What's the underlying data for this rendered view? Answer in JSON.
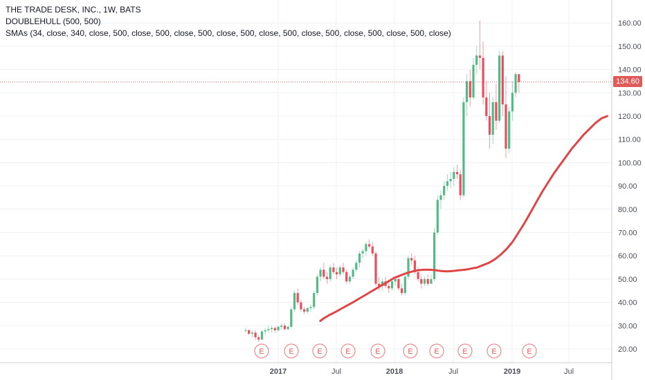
{
  "legend": {
    "title": "THE TRADE DESK, INC., 1W, BATS",
    "indicator1": "DOUBLEHULL (500, 500)",
    "indicator2": "SMAs (34, close, 340, close, 500, close, 500, close, 500, close, 500, close, 500, close, 500, close, 500, close, 500, close)"
  },
  "last_price": "134.60",
  "colors": {
    "up": "#53b987",
    "down": "#eb4d5c",
    "sma": "#e04545",
    "price_line": "#e05a5a",
    "grid": "#eef0f3"
  },
  "chart_data": {
    "type": "candlestick",
    "y_axis": {
      "min": 15,
      "max": 165,
      "ticks": [
        "20.00",
        "30.00",
        "40.00",
        "50.00",
        "60.00",
        "70.00",
        "80.00",
        "90.00",
        "100.00",
        "110.00",
        "120.00",
        "130.00",
        "140.00",
        "150.00",
        "160.00"
      ]
    },
    "x_axis": {
      "labels": [
        "2017",
        "Jul",
        "2018",
        "Jul",
        "2019",
        "Jul"
      ],
      "bold": [
        "2017",
        "2018",
        "2019"
      ]
    },
    "earnings_markers": [
      "E",
      "E",
      "E",
      "E",
      "E",
      "E",
      "E",
      "E",
      "E",
      "E"
    ],
    "candles": [
      [
        28,
        29,
        27,
        28
      ],
      [
        28,
        28.5,
        26,
        26.5
      ],
      [
        26.5,
        28,
        25,
        27
      ],
      [
        27,
        28,
        24,
        25
      ],
      [
        25,
        26,
        23,
        24
      ],
      [
        24,
        28,
        24,
        27.5
      ],
      [
        27.5,
        29,
        26,
        28
      ],
      [
        28,
        30,
        27,
        28.5
      ],
      [
        28.5,
        30,
        27,
        29
      ],
      [
        29,
        29.5,
        27,
        28
      ],
      [
        28,
        30,
        27.5,
        29.5
      ],
      [
        29.5,
        31,
        28.5,
        30
      ],
      [
        30,
        31,
        28,
        28.5
      ],
      [
        28.5,
        30,
        28,
        29.5
      ],
      [
        29.5,
        38,
        29,
        37
      ],
      [
        37,
        45,
        36,
        44
      ],
      [
        44,
        46,
        39,
        40
      ],
      [
        40,
        41,
        36,
        37
      ],
      [
        37,
        38,
        35,
        36
      ],
      [
        36,
        38,
        35,
        37.5
      ],
      [
        37.5,
        39,
        36,
        38
      ],
      [
        38,
        45,
        37,
        44
      ],
      [
        44,
        52,
        43,
        51
      ],
      [
        51,
        55,
        49,
        54
      ],
      [
        54,
        57,
        50,
        51
      ],
      [
        51,
        53,
        48,
        50
      ],
      [
        50,
        56,
        49,
        55
      ],
      [
        55,
        57,
        52,
        53
      ],
      [
        53,
        55,
        50,
        52
      ],
      [
        52,
        56,
        51,
        55
      ],
      [
        55,
        57,
        52,
        53
      ],
      [
        53,
        54,
        48,
        49
      ],
      [
        49,
        52,
        48,
        51
      ],
      [
        51,
        55,
        50,
        54
      ],
      [
        54,
        58,
        53,
        57
      ],
      [
        57,
        62,
        55,
        61
      ],
      [
        61,
        63,
        59,
        62
      ],
      [
        62,
        66,
        60,
        65
      ],
      [
        65,
        67,
        63,
        64
      ],
      [
        64,
        66,
        60,
        61
      ],
      [
        61,
        62,
        47,
        48
      ],
      [
        48,
        51,
        45,
        47
      ],
      [
        47,
        50,
        45,
        49
      ],
      [
        49,
        51,
        46,
        47
      ],
      [
        47,
        49,
        44,
        46
      ],
      [
        46,
        50,
        45,
        49
      ],
      [
        49,
        51,
        47,
        50
      ],
      [
        50,
        51,
        45,
        46
      ],
      [
        46,
        48,
        43,
        44
      ],
      [
        44,
        52,
        43,
        51
      ],
      [
        51,
        60,
        50,
        59
      ],
      [
        59,
        61,
        56,
        58
      ],
      [
        58,
        60,
        52,
        53
      ],
      [
        53,
        55,
        49,
        50
      ],
      [
        50,
        52,
        46,
        48
      ],
      [
        48,
        51,
        47,
        50
      ],
      [
        50,
        52,
        47,
        48
      ],
      [
        48,
        52,
        48,
        50
      ],
      [
        50,
        72,
        49,
        70
      ],
      [
        70,
        86,
        69,
        84
      ],
      [
        84,
        88,
        80,
        86
      ],
      [
        86,
        92,
        84,
        90
      ],
      [
        90,
        95,
        88,
        92
      ],
      [
        92,
        96,
        89,
        93
      ],
      [
        93,
        98,
        90,
        96
      ],
      [
        96,
        99,
        93,
        95
      ],
      [
        95,
        97,
        84,
        86
      ],
      [
        86,
        128,
        85,
        126
      ],
      [
        126,
        138,
        120,
        135
      ],
      [
        135,
        140,
        124,
        128
      ],
      [
        128,
        145,
        127,
        142
      ],
      [
        142,
        150,
        138,
        146
      ],
      [
        146,
        161,
        140,
        145
      ],
      [
        145,
        152,
        125,
        128
      ],
      [
        128,
        135,
        118,
        120
      ],
      [
        120,
        130,
        106,
        112
      ],
      [
        112,
        128,
        108,
        126
      ],
      [
        126,
        134,
        114,
        118
      ],
      [
        118,
        148,
        117,
        146
      ],
      [
        146,
        148,
        120,
        125
      ],
      [
        125,
        137,
        102,
        106
      ],
      [
        106,
        124,
        104,
        122
      ],
      [
        122,
        135,
        118,
        130
      ],
      [
        130,
        139,
        128,
        138
      ],
      [
        138,
        138,
        130,
        134.6
      ]
    ],
    "sma": [
      [
        21.5,
        32
      ],
      [
        22,
        33
      ],
      [
        23,
        34.5
      ],
      [
        24,
        35.8
      ],
      [
        25,
        37.2
      ],
      [
        26,
        38.6
      ],
      [
        27,
        40
      ],
      [
        28,
        41.5
      ],
      [
        29,
        43
      ],
      [
        30,
        44.5
      ],
      [
        31,
        46
      ],
      [
        32,
        47.5
      ],
      [
        33,
        49
      ],
      [
        34,
        50.5
      ],
      [
        35,
        51.5
      ],
      [
        36,
        52.5
      ],
      [
        37,
        53.2
      ],
      [
        38,
        53.8
      ],
      [
        39,
        54
      ],
      [
        40,
        54
      ],
      [
        41,
        53.8
      ],
      [
        42,
        53.4
      ],
      [
        43,
        53.3
      ],
      [
        44,
        53.5
      ],
      [
        45,
        53.8
      ],
      [
        46,
        54
      ],
      [
        47,
        54.5
      ],
      [
        48,
        55
      ],
      [
        49,
        56
      ],
      [
        50,
        57
      ],
      [
        51,
        58.5
      ],
      [
        52,
        60.5
      ],
      [
        53,
        63
      ],
      [
        54,
        66
      ],
      [
        55,
        70
      ],
      [
        56,
        74
      ],
      [
        57,
        78.5
      ],
      [
        58,
        83
      ],
      [
        59,
        87.5
      ],
      [
        60,
        91.5
      ],
      [
        61,
        95.5
      ],
      [
        62,
        99
      ],
      [
        63,
        102.5
      ],
      [
        64,
        106
      ],
      [
        65,
        109
      ],
      [
        66,
        112
      ],
      [
        67,
        114.5
      ],
      [
        68,
        117
      ],
      [
        69,
        119
      ],
      [
        70,
        120
      ]
    ]
  }
}
